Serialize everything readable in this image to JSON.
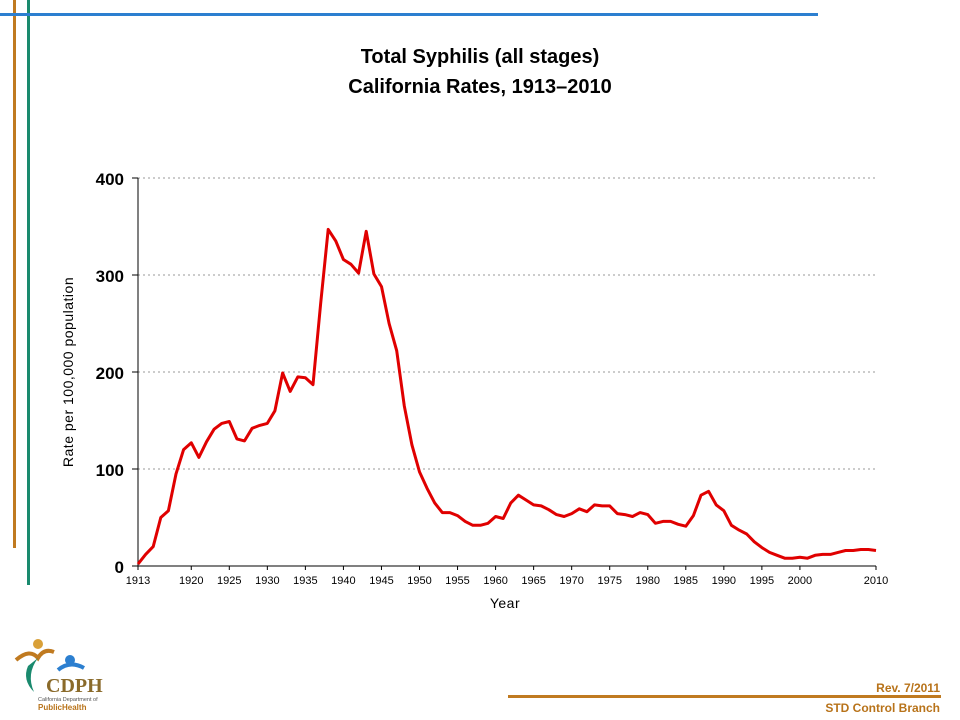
{
  "slide": {
    "title_line1": "Total Syphilis (all stages)",
    "title_line2": "California Rates, 1913–2010",
    "revision": "Rev. 7/2011",
    "branch": "STD Control Branch",
    "logo": {
      "acronym": "CDPH",
      "org_small": "California Department of",
      "org_name": "PublicHealth"
    },
    "colors": {
      "line": "#e00000",
      "accent_orange": "#c07a20",
      "accent_teal": "#1a8a6e",
      "accent_blue": "#2c7fd0"
    }
  },
  "chart_data": {
    "type": "line",
    "title": "Total Syphilis (all stages) California Rates, 1913–2010",
    "xlabel": "Year",
    "ylabel": "Rate per 100,000 population",
    "xlim": [
      1913,
      2010
    ],
    "ylim": [
      0,
      400
    ],
    "yticks": [
      0,
      100,
      200,
      300,
      400
    ],
    "xtick_labels": [
      "1913",
      "1920",
      "1925",
      "1930",
      "1935",
      "1940",
      "1945",
      "1950",
      "1955",
      "1960",
      "1965",
      "1970",
      "1975",
      "1980",
      "1985",
      "1990",
      "1995",
      "2000",
      "2010"
    ],
    "xtick_values": [
      1913,
      1920,
      1925,
      1930,
      1935,
      1940,
      1945,
      1950,
      1955,
      1960,
      1965,
      1970,
      1975,
      1980,
      1985,
      1990,
      1995,
      2000,
      2010
    ],
    "grid": "horizontal dotted",
    "legend": "none",
    "series": [
      {
        "color": "#e00000",
        "x": [
          1913,
          1914,
          1915,
          1916,
          1917,
          1918,
          1919,
          1920,
          1921,
          1922,
          1923,
          1924,
          1925,
          1926,
          1927,
          1928,
          1929,
          1930,
          1931,
          1932,
          1933,
          1934,
          1935,
          1936,
          1937,
          1938,
          1939,
          1940,
          1941,
          1942,
          1943,
          1944,
          1945,
          1946,
          1947,
          1948,
          1949,
          1950,
          1951,
          1952,
          1953,
          1954,
          1955,
          1956,
          1957,
          1958,
          1959,
          1960,
          1961,
          1962,
          1963,
          1964,
          1965,
          1966,
          1967,
          1968,
          1969,
          1970,
          1971,
          1972,
          1973,
          1974,
          1975,
          1976,
          1977,
          1978,
          1979,
          1980,
          1981,
          1982,
          1983,
          1984,
          1985,
          1986,
          1987,
          1988,
          1989,
          1990,
          1991,
          1992,
          1993,
          1994,
          1995,
          1996,
          1997,
          1998,
          1999,
          2000,
          2001,
          2002,
          2003,
          2004,
          2005,
          2006,
          2007,
          2008,
          2009,
          2010
        ],
        "y": [
          2,
          12,
          20,
          50,
          57,
          95,
          120,
          127,
          112,
          128,
          141,
          147,
          149,
          131,
          129,
          142,
          145,
          147,
          160,
          199,
          180,
          195,
          194,
          187,
          270,
          347,
          335,
          316,
          311,
          302,
          345,
          301,
          288,
          250,
          222,
          165,
          125,
          97,
          80,
          65,
          55,
          55,
          52,
          46,
          42,
          42,
          44,
          51,
          49,
          65,
          73,
          68,
          63,
          62,
          58,
          53,
          51,
          54,
          59,
          56,
          63,
          62,
          62,
          54,
          53,
          51,
          55,
          53,
          44,
          46,
          46,
          43,
          41,
          52,
          73,
          77,
          63,
          57,
          42,
          37,
          33,
          25,
          19,
          14,
          11,
          8,
          8,
          9,
          8,
          11,
          12,
          12,
          14,
          16,
          16,
          17,
          17,
          16
        ]
      }
    ]
  }
}
